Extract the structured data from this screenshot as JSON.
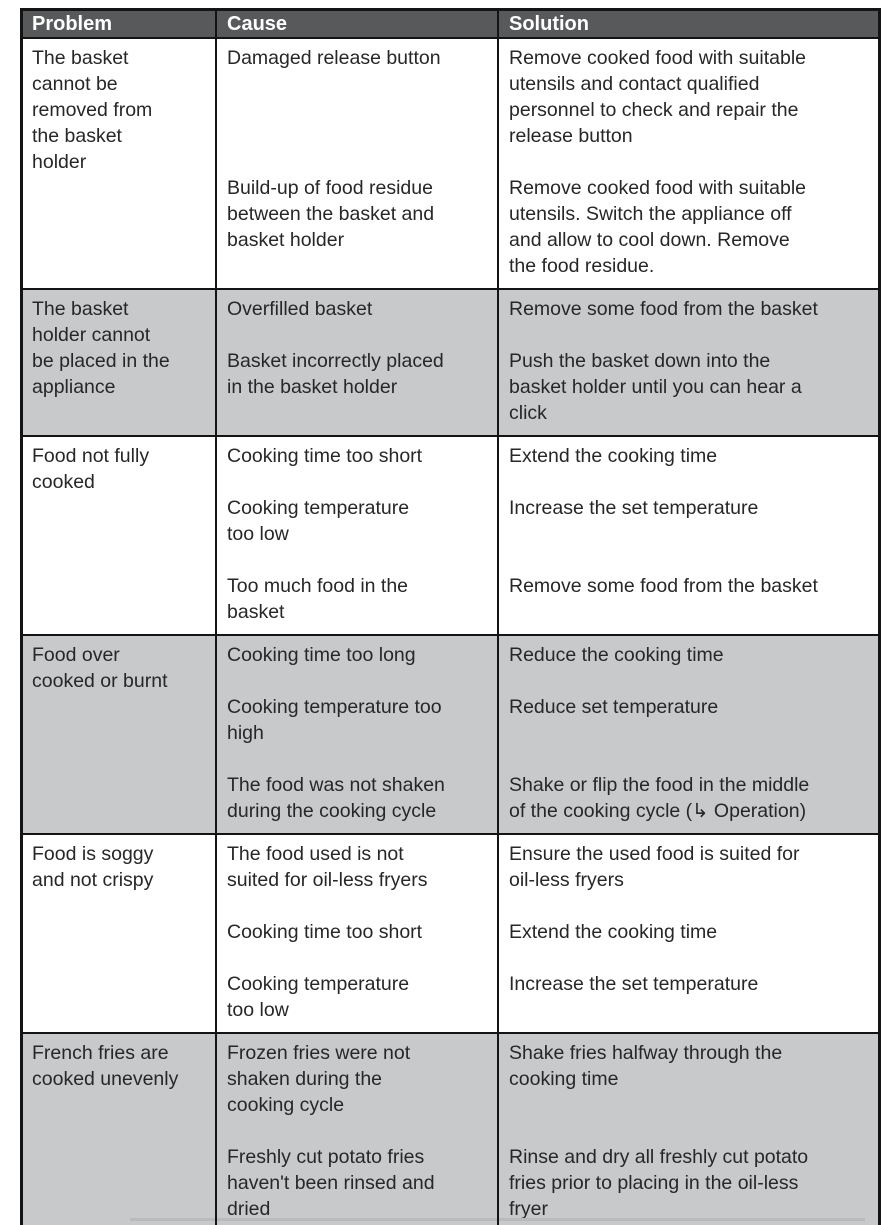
{
  "colors": {
    "header_bg": "#58595b",
    "header_text": "#ffffff",
    "shaded_row_bg": "#c8c9cb",
    "row_bg": "#ffffff",
    "border": "#141414",
    "text": "#272727"
  },
  "table": {
    "headers": [
      "Problem",
      "Cause",
      "Solution"
    ],
    "rows": [
      {
        "shaded": false,
        "problem": "The basket\ncannot be\nremoved from\nthe basket\nholder",
        "pairs": [
          {
            "cause": "Damaged release button",
            "solution": "Remove cooked food with suitable\nutensils and contact qualified\npersonnel to check and repair the\nrelease button"
          },
          {
            "cause": "Build-up of food residue\nbetween the basket and\nbasket holder",
            "solution": "Remove cooked food with suitable\nutensils. Switch the appliance off\nand allow to cool down. Remove\nthe food residue."
          }
        ]
      },
      {
        "shaded": true,
        "problem": "The basket\nholder cannot\nbe placed in the\nappliance",
        "pairs": [
          {
            "cause": "Overfilled basket",
            "solution": "Remove some food from the basket"
          },
          {
            "cause": "Basket incorrectly placed\nin the basket holder",
            "solution": "Push the basket down into the\nbasket holder until you can hear a\nclick"
          }
        ]
      },
      {
        "shaded": false,
        "problem": "Food not fully\ncooked",
        "pairs": [
          {
            "cause": "Cooking time too short",
            "solution": "Extend the cooking time"
          },
          {
            "cause": "Cooking temperature\ntoo low",
            "solution": "Increase the set temperature"
          },
          {
            "cause": "Too much food in the\nbasket",
            "solution": "Remove some food from the basket"
          }
        ]
      },
      {
        "shaded": true,
        "problem": "Food over\ncooked or burnt",
        "pairs": [
          {
            "cause": "Cooking time too long",
            "solution": "Reduce the cooking time"
          },
          {
            "cause": "Cooking temperature too\nhigh",
            "solution": "Reduce set temperature"
          },
          {
            "cause": "The food was not shaken\nduring the cooking cycle",
            "solution": "Shake or flip the food in the middle\nof the cooking cycle (↳ Operation)"
          }
        ]
      },
      {
        "shaded": false,
        "problem": "Food is soggy\nand not crispy",
        "pairs": [
          {
            "cause": "The food used is not\nsuited for oil-less fryers",
            "solution": "Ensure the used food is suited for\noil-less fryers"
          },
          {
            "cause": "Cooking time too short",
            "solution": "Extend the cooking time"
          },
          {
            "cause": "Cooking temperature\ntoo low",
            "solution": "Increase the set temperature"
          }
        ]
      },
      {
        "shaded": true,
        "problem": "French fries are\ncooked unevenly",
        "pairs": [
          {
            "cause": "Frozen fries were not\nshaken during the\ncooking cycle",
            "solution": "Shake fries halfway through the\ncooking time"
          },
          {
            "cause": "Freshly cut potato fries\nhaven't been rinsed and\ndried",
            "solution": "Rinse and dry all freshly cut potato\nfries prior to placing in the oil-less\nfryer"
          }
        ]
      }
    ]
  }
}
